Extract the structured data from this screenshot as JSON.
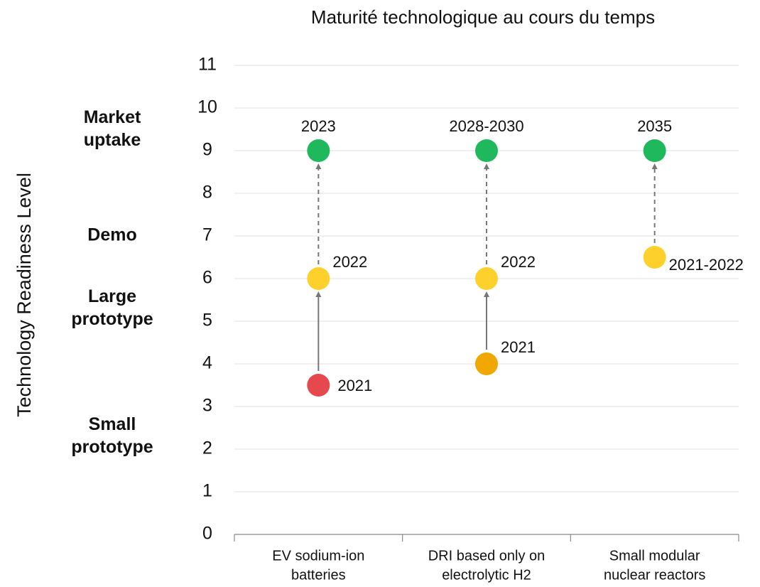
{
  "chart_data": {
    "type": "scatter",
    "title": "Maturité technologique au cours du temps",
    "y_label": "Technology Readiness Level",
    "categories": [
      "EV sodium-ion\nbatteries",
      "DRI based only on\nelectrolytic H2",
      "Small modular\nnuclear reactors"
    ],
    "ylim": [
      0,
      11
    ],
    "yticks": [
      0,
      1,
      2,
      3,
      4,
      5,
      6,
      7,
      8,
      9,
      10,
      11
    ],
    "grid": true,
    "levels": [
      {
        "label": "Market\nuptake",
        "value": 9.5,
        "color": "#1fb85c"
      },
      {
        "label": "Demo",
        "value": 7,
        "color": "#fdd02b"
      },
      {
        "label": "Large\nprototype",
        "value": 5.3,
        "color": "#f0a800"
      },
      {
        "label": "Small\nprototype",
        "value": 2.3,
        "color": "#e5484d"
      }
    ],
    "series": [
      {
        "values": [
          3.5,
          6,
          9
        ],
        "value_labels": [
          "2021",
          "2022",
          "2023"
        ],
        "colors": [
          "#e5484d",
          "#fdd02b",
          "#1fb85c"
        ],
        "label_positions": [
          "right",
          "upper-right",
          "above"
        ],
        "arrows": [
          "solid",
          "dashed"
        ]
      },
      {
        "values": [
          4,
          6,
          9
        ],
        "value_labels": [
          "2021",
          "2022",
          "2028-2030"
        ],
        "colors": [
          "#f0a800",
          "#fdd02b",
          "#1fb85c"
        ],
        "label_positions": [
          "upper-right",
          "upper-right",
          "above"
        ],
        "arrows": [
          "solid",
          "dashed"
        ]
      },
      {
        "values": [
          6.5,
          9
        ],
        "value_labels": [
          "2021-2022",
          "2035"
        ],
        "colors": [
          "#fdd02b",
          "#1fb85c"
        ],
        "label_positions": [
          "lower-right",
          "above"
        ],
        "arrows": [
          "dashed"
        ]
      }
    ]
  }
}
